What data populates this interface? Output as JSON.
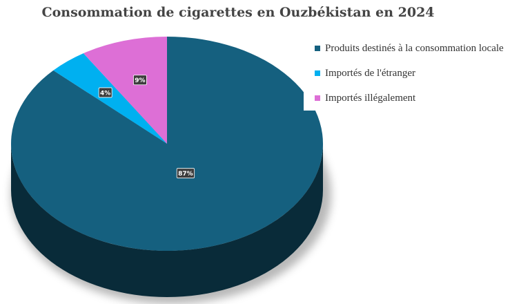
{
  "chart_data": {
    "type": "pie",
    "title": "Consommation de cigarettes en Ouzbékistan en 2024",
    "legend_position": "top-right",
    "slices": [
      {
        "name": "Produits destinés à la consommation locale",
        "value": 87,
        "label": "87%",
        "color": "#15607f"
      },
      {
        "name": "Importés de l'étranger",
        "value": 4,
        "label": "4%",
        "color": "#00b0f0"
      },
      {
        "name": "Importés illégalement",
        "value": 9,
        "label": "9%",
        "color": "#dd6fd6"
      }
    ]
  }
}
